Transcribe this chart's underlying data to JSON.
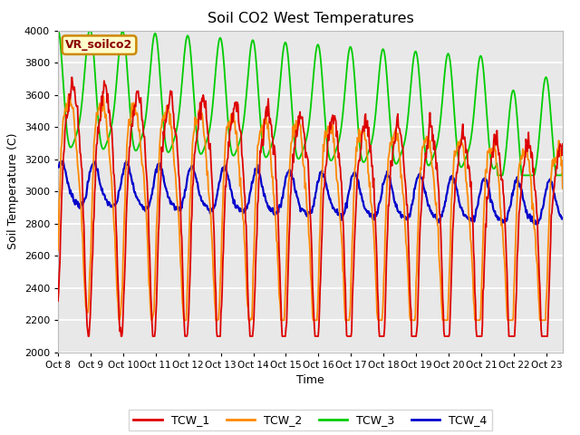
{
  "title": "Soil CO2 West Temperatures",
  "xlabel": "Time",
  "ylabel": "Soil Temperature (C)",
  "ylim": [
    2000,
    4000
  ],
  "xlim_min": 0,
  "xlim_max": 15.5,
  "bg_color": "#e8e8e8",
  "grid_color": "#ffffff",
  "annotation_text": "VR_soilco2",
  "annotation_bg": "#ffffcc",
  "annotation_border": "#cc8800",
  "colors": {
    "TCW_1": "#dd0000",
    "TCW_2": "#ff8800",
    "TCW_3": "#00cc00",
    "TCW_4": "#0000cc"
  },
  "xtick_labels": [
    "Oct 8",
    "Oct 9",
    "Oct 10",
    "Oct 11",
    "Oct 12",
    "Oct 13",
    "Oct 14",
    "Oct 15",
    "Oct 16",
    "Oct 17",
    "Oct 18",
    "Oct 19",
    "Oct 20",
    "Oct 21",
    "Oct 22",
    "Oct 23"
  ],
  "ytick_vals": [
    2000,
    2200,
    2400,
    2600,
    2800,
    3000,
    3200,
    3400,
    3600,
    3800,
    4000
  ],
  "lw": 1.3
}
